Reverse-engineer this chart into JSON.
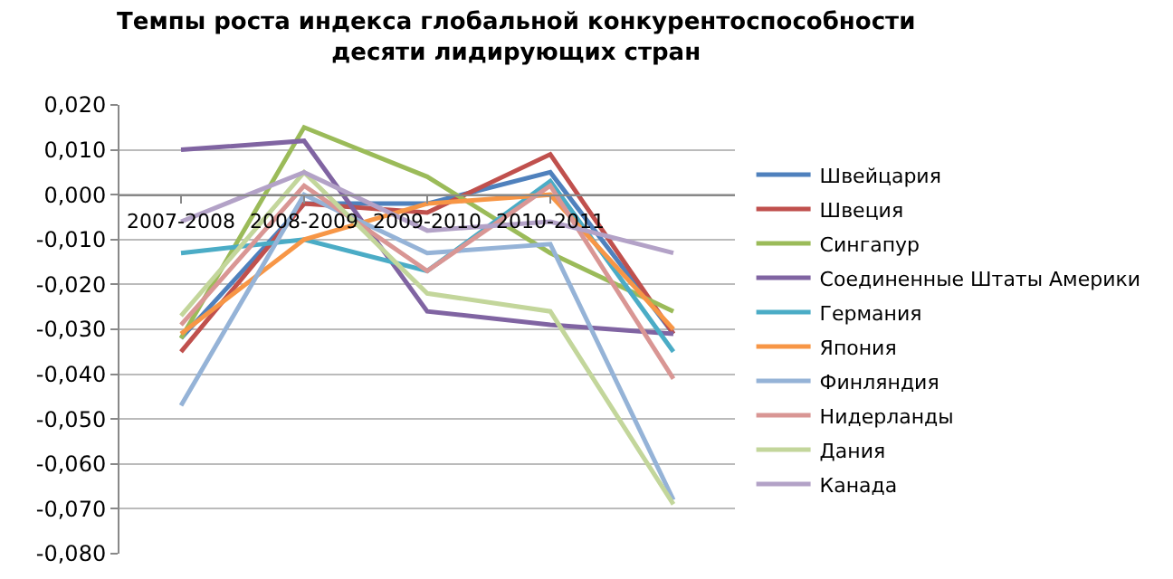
{
  "chart_data": {
    "type": "line",
    "title": "Темпы роста индекса глобальной конкурентоспособности десяти лидирующих стран",
    "categories": [
      "2007-2008",
      "2008-2009",
      "2009-2010",
      "2010-2011",
      null
    ],
    "series": [
      {
        "name": "Швейцария",
        "color": "#4f81bd",
        "values": [
          -0.032,
          -0.002,
          -0.002,
          0.005,
          -0.031
        ]
      },
      {
        "name": "Швеция",
        "color": "#c0504d",
        "values": [
          -0.035,
          -0.002,
          -0.004,
          0.009,
          -0.031
        ]
      },
      {
        "name": "Сингапур",
        "color": "#9bbb59",
        "values": [
          -0.032,
          0.015,
          0.004,
          -0.013,
          -0.026
        ]
      },
      {
        "name": "Соединенные Штаты Америки",
        "color": "#8064a2",
        "values": [
          0.01,
          0.012,
          -0.026,
          -0.029,
          -0.031
        ]
      },
      {
        "name": "Германия",
        "color": "#4bacc6",
        "values": [
          -0.013,
          -0.01,
          -0.017,
          0.003,
          -0.035
        ]
      },
      {
        "name": "Япония",
        "color": "#f79646",
        "values": [
          -0.031,
          -0.01,
          -0.002,
          0.0,
          -0.03
        ]
      },
      {
        "name": "Финляндия",
        "color": "#95b3d7",
        "values": [
          -0.047,
          0.0,
          -0.013,
          -0.011,
          -0.068
        ]
      },
      {
        "name": "Нидерланды",
        "color": "#d99694",
        "values": [
          -0.029,
          0.002,
          -0.017,
          0.002,
          -0.041
        ]
      },
      {
        "name": "Дания",
        "color": "#c3d69b",
        "values": [
          -0.027,
          0.005,
          -0.022,
          -0.026,
          -0.069
        ]
      },
      {
        "name": "Канада",
        "color": "#b3a2c7",
        "values": [
          -0.006,
          0.005,
          -0.008,
          -0.006,
          -0.013
        ]
      }
    ],
    "ylim": [
      -0.08,
      0.02
    ],
    "yticks": [
      {
        "value": -0.08,
        "label": "-0,080"
      },
      {
        "value": -0.07,
        "label": "-0,070"
      },
      {
        "value": -0.06,
        "label": "-0,060"
      },
      {
        "value": -0.05,
        "label": "-0,050"
      },
      {
        "value": -0.04,
        "label": "-0,040"
      },
      {
        "value": -0.03,
        "label": "-0,030"
      },
      {
        "value": -0.02,
        "label": "-0,020"
      },
      {
        "value": -0.01,
        "label": "-0,010"
      },
      {
        "value": 0,
        "label": "0,000"
      },
      {
        "value": 0.01,
        "label": "0,010"
      },
      {
        "value": 0.02,
        "label": "0,020"
      }
    ],
    "grid": "y",
    "legend": "right",
    "marker": "none",
    "line_style": "solid"
  }
}
